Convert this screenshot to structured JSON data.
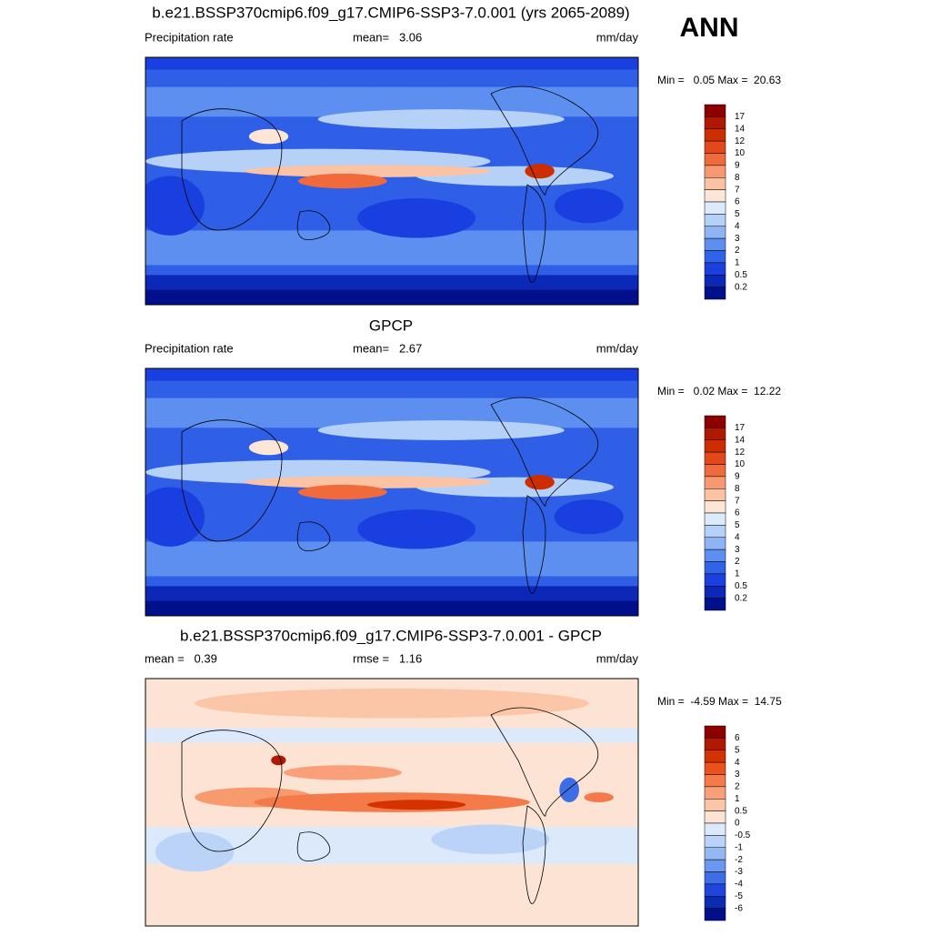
{
  "header": {
    "title": "b.e21.BSSP370cmip6.f09_g17.CMIP6-SSP3-7.0.001 (yrs 2065-2089)",
    "season": "ANN"
  },
  "panels": [
    {
      "title": null,
      "left": "Precipitation rate",
      "center": "mean=   3.06",
      "right": "mm/day",
      "minmax": "Min =   0.05 Max =  20.63",
      "map": "precip",
      "colorbar": {
        "labels": [
          "17",
          "14",
          "12",
          "10",
          "9",
          "8",
          "7",
          "6",
          "5",
          "4",
          "3",
          "2",
          "1",
          "0.5",
          "0.2"
        ],
        "colors": [
          "#8c0000",
          "#b01800",
          "#cc2e00",
          "#e2481a",
          "#f06a3c",
          "#f79870",
          "#fbc3a4",
          "#fde6d6",
          "#dcebfb",
          "#b6d1f7",
          "#8fb4f2",
          "#5c8ff0",
          "#3064e8",
          "#1a40e0",
          "#0c28b8",
          "#00108a"
        ]
      }
    },
    {
      "title": "GPCP",
      "left": "Precipitation rate",
      "center": "mean=   2.67",
      "right": "mm/day",
      "minmax": "Min =   0.02 Max =  12.22",
      "map": "precip",
      "colorbar": {
        "labels": [
          "17",
          "14",
          "12",
          "10",
          "9",
          "8",
          "7",
          "6",
          "5",
          "4",
          "3",
          "2",
          "1",
          "0.5",
          "0.2"
        ],
        "colors": [
          "#8c0000",
          "#b01800",
          "#cc2e00",
          "#e2481a",
          "#f06a3c",
          "#f79870",
          "#fbc3a4",
          "#fde6d6",
          "#dcebfb",
          "#b6d1f7",
          "#8fb4f2",
          "#5c8ff0",
          "#3064e8",
          "#1a40e0",
          "#0c28b8",
          "#00108a"
        ]
      }
    },
    {
      "title": "b.e21.BSSP370cmip6.f09_g17.CMIP6-SSP3-7.0.001 - GPCP",
      "left": "mean =   0.39",
      "center": "rmse =   1.16",
      "right": "mm/day",
      "minmax": "Min =  -4.59 Max =  14.75",
      "map": "diff",
      "colorbar": {
        "labels": [
          "6",
          "5",
          "4",
          "3",
          "2",
          "1",
          "0.5",
          "0",
          "-0.5",
          "-1",
          "-2",
          "-3",
          "-4",
          "-5",
          "-6"
        ],
        "colors": [
          "#8c0000",
          "#b01800",
          "#d43200",
          "#ee501c",
          "#f57a4a",
          "#f9a07a",
          "#fbc5a8",
          "#fde3d3",
          "#dce9fb",
          "#bad3f7",
          "#94b8f2",
          "#6b97ee",
          "#3e6ee6",
          "#1e45dc",
          "#0b2cb0",
          "#00108a"
        ]
      }
    }
  ]
}
